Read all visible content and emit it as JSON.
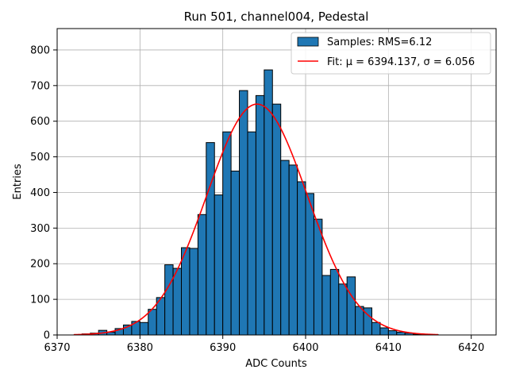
{
  "chart_data": {
    "type": "bar",
    "title": "Run 501, channel004, Pedestal",
    "xlabel": "ADC Counts",
    "ylabel": "Entries",
    "xlim": [
      6370,
      6423
    ],
    "ylim": [
      0,
      860
    ],
    "xticks": [
      6370,
      6380,
      6390,
      6400,
      6410,
      6420
    ],
    "yticks": [
      0,
      100,
      200,
      300,
      400,
      500,
      600,
      700,
      800
    ],
    "grid": true,
    "legend_position": "top-right",
    "bin_width": 1,
    "bins": {
      "left_edges": [
        6373,
        6374,
        6375,
        6376,
        6377,
        6378,
        6379,
        6380,
        6381,
        6382,
        6383,
        6384,
        6385,
        6386,
        6387,
        6388,
        6389,
        6390,
        6391,
        6392,
        6393,
        6394,
        6395,
        6396,
        6397,
        6398,
        6399,
        6400,
        6401,
        6402,
        6403,
        6404,
        6405,
        6406,
        6407,
        6408,
        6409,
        6410,
        6411,
        6412,
        6413,
        6414,
        6415
      ],
      "counts": [
        3,
        5,
        13,
        8,
        18,
        28,
        38,
        35,
        72,
        105,
        197,
        187,
        245,
        243,
        338,
        540,
        393,
        570,
        460,
        686,
        570,
        672,
        744,
        648,
        490,
        477,
        430,
        397,
        325,
        167,
        184,
        143,
        163,
        80,
        76,
        35,
        20,
        12,
        8,
        5,
        2,
        1,
        1
      ]
    },
    "series": [
      {
        "name": "Samples: RMS=6.12",
        "kind": "histogram",
        "color": "#1f77b4"
      },
      {
        "name": "Fit: μ = 6394.137, σ = 6.056",
        "kind": "gaussian-fit",
        "color": "#ff0000",
        "mu": 6394.137,
        "sigma": 6.056,
        "amplitude": 648,
        "x_range": [
          6372,
          6416
        ]
      }
    ]
  }
}
